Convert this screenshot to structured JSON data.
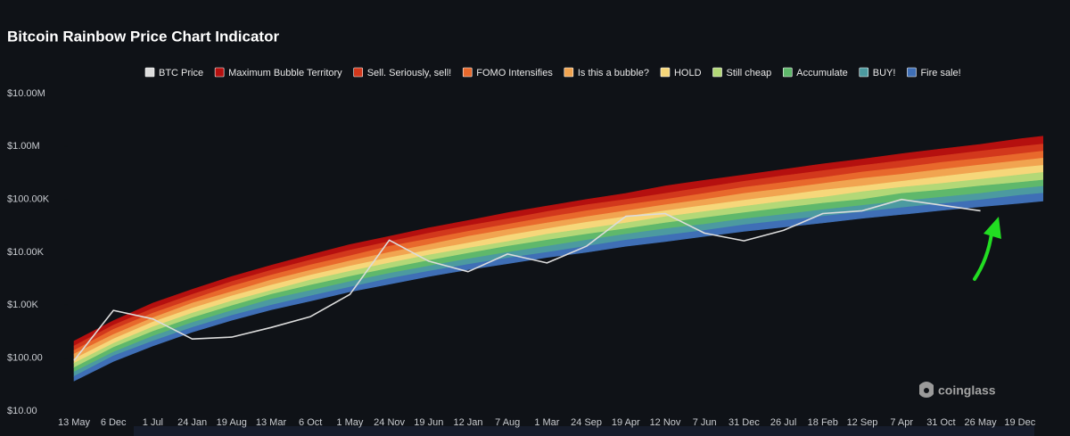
{
  "chart_data": {
    "type": "line",
    "title": "Bitcoin Rainbow Price Chart Indicator",
    "watermark": "coinglass",
    "log_scale": true,
    "grid": false,
    "legend": "top",
    "categories": [
      "13 May",
      "6 Dec",
      "1 Jul",
      "24 Jan",
      "19 Aug",
      "13 Mar",
      "6 Oct",
      "1 May",
      "24 Nov",
      "19 Jun",
      "12 Jan",
      "7 Aug",
      "1 Mar",
      "24 Sep",
      "19 Apr",
      "12 Nov",
      "7 Jun",
      "31 Dec",
      "26 Jul",
      "18 Feb",
      "12 Sep",
      "7 Apr",
      "31 Oct",
      "26 May",
      "19 Dec",
      null
    ],
    "ylim": [
      10,
      10000000
    ],
    "yticks": [
      {
        "value": 10,
        "label": "$10.00"
      },
      {
        "value": 100,
        "label": "$100.00"
      },
      {
        "value": 1000,
        "label": "$1.00K"
      },
      {
        "value": 10000,
        "label": "$10.00K"
      },
      {
        "value": 100000,
        "label": "$100.00K"
      },
      {
        "value": 1000000,
        "label": "$1.00M"
      },
      {
        "value": 10000000,
        "label": "$10.00M"
      }
    ],
    "series": [
      {
        "name": "BTC Price",
        "color": "#dcdcdc",
        "type": "line",
        "values": [
          90,
          800,
          550,
          230,
          250,
          380,
          610,
          1600,
          17000,
          6800,
          4300,
          9300,
          6300,
          13000,
          48000,
          54000,
          23000,
          16500,
          26000,
          54000,
          61000,
          100000,
          78000,
          61000,
          null,
          null
        ]
      },
      {
        "name": "Maximum Bubble Territory",
        "color": "#b5100f",
        "type": "range",
        "values": [
          [
            170,
            210
          ],
          [
            420,
            510
          ],
          [
            870,
            1100
          ],
          [
            1600,
            2000
          ],
          [
            2800,
            3500
          ],
          [
            4600,
            5700
          ],
          [
            7200,
            9000
          ],
          [
            11000,
            14000
          ],
          [
            16000,
            20000
          ],
          [
            23000,
            29000
          ],
          [
            32000,
            40000
          ],
          [
            43000,
            56000
          ],
          [
            59000,
            75000
          ],
          [
            79000,
            100000
          ],
          [
            100000,
            130000
          ],
          [
            130000,
            180000
          ],
          [
            170000,
            230000
          ],
          [
            220000,
            290000
          ],
          [
            280000,
            370000
          ],
          [
            350000,
            470000
          ],
          [
            440000,
            580000
          ],
          [
            540000,
            730000
          ],
          [
            670000,
            900000
          ],
          [
            820000,
            1100000
          ],
          [
            1000000,
            1400000
          ],
          [
            1200000,
            1700000
          ]
        ]
      },
      {
        "name": "Sell. Seriously, sell!",
        "color": "#d2381c",
        "type": "range",
        "values": [
          [
            140,
            170
          ],
          [
            350,
            420
          ],
          [
            710,
            870
          ],
          [
            1300,
            1600
          ],
          [
            2300,
            2800
          ],
          [
            3700,
            4600
          ],
          [
            5800,
            7200
          ],
          [
            8600,
            11000
          ],
          [
            13000,
            16000
          ],
          [
            18000,
            23000
          ],
          [
            25000,
            32000
          ],
          [
            34000,
            43000
          ],
          [
            46000,
            59000
          ],
          [
            61000,
            79000
          ],
          [
            79000,
            100000
          ],
          [
            100000,
            130000
          ],
          [
            130000,
            170000
          ],
          [
            170000,
            220000
          ],
          [
            210000,
            280000
          ],
          [
            260000,
            350000
          ],
          [
            330000,
            440000
          ],
          [
            400000,
            540000
          ],
          [
            500000,
            670000
          ],
          [
            600000,
            820000
          ],
          [
            730000,
            1000000
          ],
          [
            890000,
            1200000
          ]
        ]
      },
      {
        "name": "FOMO Intensifies",
        "color": "#e8692c",
        "type": "range",
        "values": [
          [
            120,
            140
          ],
          [
            280,
            350
          ],
          [
            580,
            710
          ],
          [
            1100,
            1300
          ],
          [
            1800,
            2300
          ],
          [
            3000,
            3700
          ],
          [
            4600,
            5800
          ],
          [
            6900,
            8600
          ],
          [
            10000,
            13000
          ],
          [
            14000,
            18000
          ],
          [
            20000,
            25000
          ],
          [
            27000,
            34000
          ],
          [
            36000,
            46000
          ],
          [
            47000,
            61000
          ],
          [
            61000,
            79000
          ],
          [
            79000,
            100000
          ],
          [
            100000,
            130000
          ],
          [
            130000,
            170000
          ],
          [
            160000,
            210000
          ],
          [
            200000,
            260000
          ],
          [
            250000,
            330000
          ],
          [
            300000,
            400000
          ],
          [
            370000,
            500000
          ],
          [
            450000,
            600000
          ],
          [
            540000,
            730000
          ],
          [
            650000,
            890000
          ]
        ]
      },
      {
        "name": "Is this a bubble?",
        "color": "#f1a450",
        "type": "range",
        "values": [
          [
            97,
            120
          ],
          [
            230,
            280
          ],
          [
            480,
            580
          ],
          [
            880,
            1100
          ],
          [
            1500,
            1800
          ],
          [
            2400,
            3000
          ],
          [
            3700,
            4600
          ],
          [
            5500,
            6900
          ],
          [
            7900,
            10000
          ],
          [
            11000,
            14000
          ],
          [
            15000,
            20000
          ],
          [
            21000,
            27000
          ],
          [
            28000,
            36000
          ],
          [
            37000,
            47000
          ],
          [
            47000,
            61000
          ],
          [
            61000,
            79000
          ],
          [
            77000,
            100000
          ],
          [
            97000,
            130000
          ],
          [
            120000,
            160000
          ],
          [
            150000,
            200000
          ],
          [
            180000,
            250000
          ],
          [
            220000,
            300000
          ],
          [
            270000,
            370000
          ],
          [
            330000,
            450000
          ],
          [
            400000,
            540000
          ],
          [
            470000,
            650000
          ]
        ]
      },
      {
        "name": "HOLD",
        "color": "#f6d77a",
        "type": "range",
        "values": [
          [
            80,
            97
          ],
          [
            190,
            230
          ],
          [
            390,
            480
          ],
          [
            710,
            880
          ],
          [
            1200,
            1500
          ],
          [
            1900,
            2400
          ],
          [
            3000,
            3700
          ],
          [
            4400,
            5500
          ],
          [
            6300,
            7900
          ],
          [
            8900,
            11000
          ],
          [
            12000,
            15000
          ],
          [
            16000,
            21000
          ],
          [
            22000,
            28000
          ],
          [
            28000,
            37000
          ],
          [
            36000,
            47000
          ],
          [
            47000,
            61000
          ],
          [
            59000,
            77000
          ],
          [
            74000,
            97000
          ],
          [
            92000,
            120000
          ],
          [
            110000,
            150000
          ],
          [
            140000,
            180000
          ],
          [
            170000,
            220000
          ],
          [
            200000,
            270000
          ],
          [
            240000,
            330000
          ],
          [
            290000,
            400000
          ],
          [
            350000,
            470000
          ]
        ]
      },
      {
        "name": "Still cheap",
        "color": "#b3d877",
        "type": "range",
        "values": [
          [
            66,
            80
          ],
          [
            160,
            190
          ],
          [
            320,
            390
          ],
          [
            580,
            710
          ],
          [
            980,
            1200
          ],
          [
            1600,
            1900
          ],
          [
            2400,
            3000
          ],
          [
            3500,
            4400
          ],
          [
            5000,
            6300
          ],
          [
            7000,
            8900
          ],
          [
            9600,
            12000
          ],
          [
            13000,
            16000
          ],
          [
            17000,
            22000
          ],
          [
            22000,
            28000
          ],
          [
            28000,
            36000
          ],
          [
            36000,
            47000
          ],
          [
            45000,
            59000
          ],
          [
            56000,
            74000
          ],
          [
            69000,
            92000
          ],
          [
            85000,
            110000
          ],
          [
            100000,
            140000
          ],
          [
            130000,
            170000
          ],
          [
            150000,
            200000
          ],
          [
            180000,
            240000
          ],
          [
            210000,
            290000
          ],
          [
            250000,
            350000
          ]
        ]
      },
      {
        "name": "Accumulate",
        "color": "#5fb86b",
        "type": "range",
        "values": [
          [
            55,
            66
          ],
          [
            130,
            160
          ],
          [
            260,
            320
          ],
          [
            470,
            580
          ],
          [
            790,
            980
          ],
          [
            1300,
            1600
          ],
          [
            1900,
            2400
          ],
          [
            2800,
            3500
          ],
          [
            4000,
            5000
          ],
          [
            5500,
            7000
          ],
          [
            7500,
            9600
          ],
          [
            10000,
            13000
          ],
          [
            13000,
            17000
          ],
          [
            17000,
            22000
          ],
          [
            22000,
            28000
          ],
          [
            28000,
            36000
          ],
          [
            34000,
            45000
          ],
          [
            43000,
            56000
          ],
          [
            52000,
            69000
          ],
          [
            64000,
            85000
          ],
          [
            77000,
            100000
          ],
          [
            93000,
            130000
          ],
          [
            110000,
            150000
          ],
          [
            130000,
            180000
          ],
          [
            160000,
            210000
          ],
          [
            190000,
            250000
          ]
        ]
      },
      {
        "name": "BUY!",
        "color": "#4c9aa0",
        "type": "range",
        "values": [
          [
            45,
            55
          ],
          [
            110,
            130
          ],
          [
            210,
            260
          ],
          [
            380,
            470
          ],
          [
            640,
            790
          ],
          [
            1000,
            1300
          ],
          [
            1500,
            1900
          ],
          [
            2200,
            2800
          ],
          [
            3200,
            4000
          ],
          [
            4400,
            5500
          ],
          [
            5900,
            7500
          ],
          [
            7800,
            10000
          ],
          [
            10000,
            13000
          ],
          [
            13000,
            17000
          ],
          [
            17000,
            22000
          ],
          [
            21000,
            28000
          ],
          [
            26000,
            34000
          ],
          [
            33000,
            43000
          ],
          [
            40000,
            52000
          ],
          [
            48000,
            64000
          ],
          [
            58000,
            77000
          ],
          [
            70000,
            93000
          ],
          [
            83000,
            110000
          ],
          [
            98000,
            130000
          ],
          [
            120000,
            160000
          ],
          [
            140000,
            190000
          ]
        ]
      },
      {
        "name": "Fire sale!",
        "color": "#3f6fb6",
        "type": "range",
        "values": [
          [
            37,
            45
          ],
          [
            87,
            110
          ],
          [
            170,
            210
          ],
          [
            310,
            380
          ],
          [
            520,
            640
          ],
          [
            820,
            1000
          ],
          [
            1200,
            1500
          ],
          [
            1800,
            2200
          ],
          [
            2500,
            3200
          ],
          [
            3500,
            4400
          ],
          [
            4700,
            5900
          ],
          [
            6100,
            7800
          ],
          [
            8000,
            10000
          ],
          [
            10000,
            13000
          ],
          [
            13000,
            17000
          ],
          [
            16000,
            21000
          ],
          [
            20000,
            26000
          ],
          [
            25000,
            33000
          ],
          [
            30000,
            40000
          ],
          [
            36000,
            48000
          ],
          [
            44000,
            58000
          ],
          [
            52000,
            70000
          ],
          [
            62000,
            83000
          ],
          [
            73000,
            98000
          ],
          [
            85000,
            120000
          ],
          [
            100000,
            140000
          ]
        ]
      }
    ]
  }
}
